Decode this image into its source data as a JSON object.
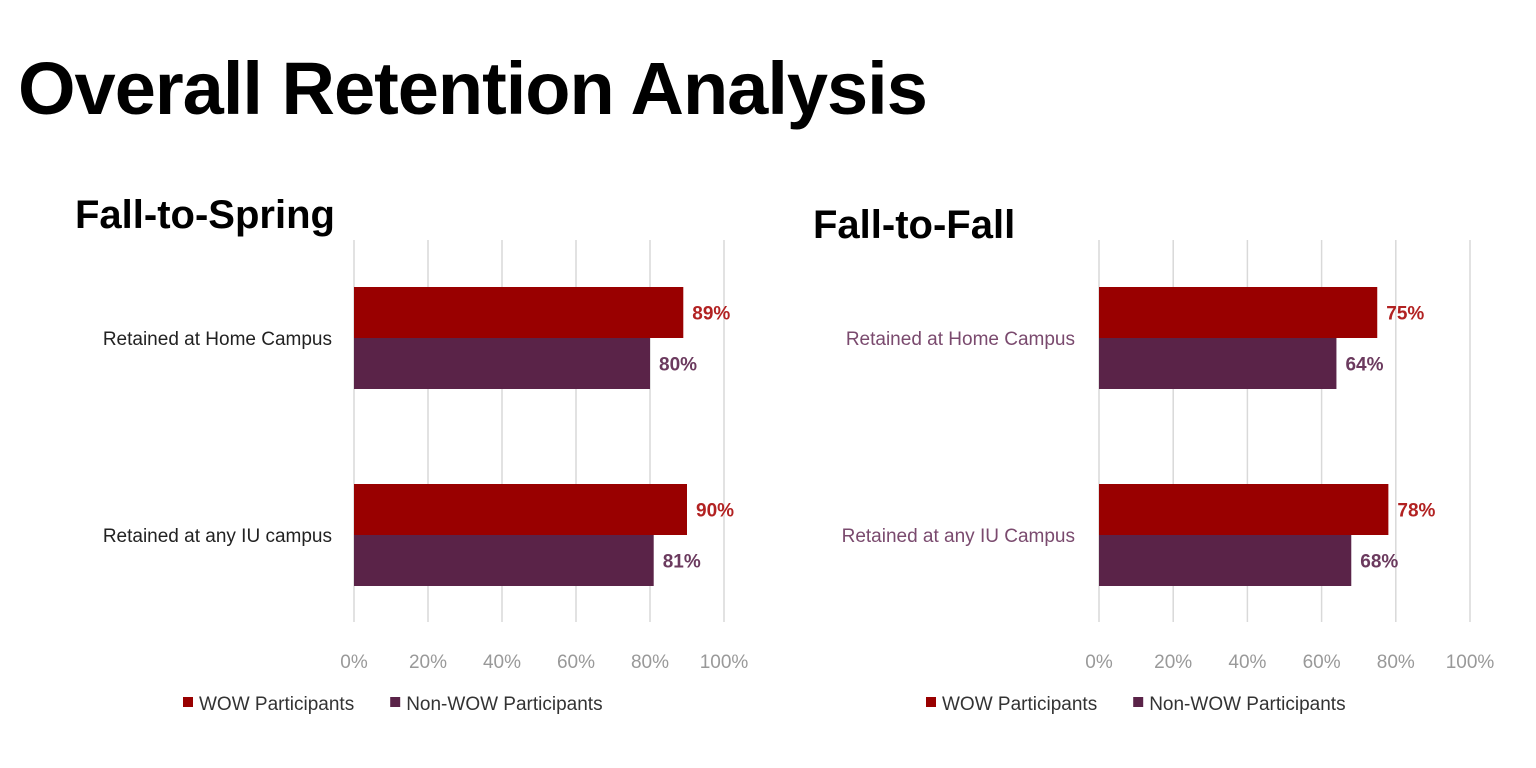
{
  "title": "Overall Retention Analysis",
  "colors": {
    "wow": "#990000",
    "non_wow": "#5a2348",
    "grid": "#d9d9d9"
  },
  "chart_data": [
    {
      "type": "bar",
      "orientation": "horizontal",
      "title": "Fall-to-Spring",
      "categories": [
        "Retained at Home Campus",
        "Retained at any IU campus"
      ],
      "series": [
        {
          "name": "WOW Participants",
          "values": [
            89,
            90
          ],
          "labels": [
            "89%",
            "90%"
          ]
        },
        {
          "name": "Non-WOW Participants",
          "values": [
            80,
            81
          ],
          "labels": [
            "80%",
            "81%"
          ]
        }
      ],
      "xlim": [
        0,
        100
      ],
      "xticks": [
        "0%",
        "20%",
        "40%",
        "60%",
        "80%",
        "100%"
      ],
      "grid": true,
      "legend": "bottom",
      "category_label_color": "#222222"
    },
    {
      "type": "bar",
      "orientation": "horizontal",
      "title": "Fall-to-Fall",
      "categories": [
        "Retained at Home Campus",
        "Retained at any IU Campus"
      ],
      "series": [
        {
          "name": "WOW Participants",
          "values": [
            75,
            78
          ],
          "labels": [
            "75%",
            "78%"
          ]
        },
        {
          "name": "Non-WOW Participants",
          "values": [
            64,
            68
          ],
          "labels": [
            "64%",
            "68%"
          ]
        }
      ],
      "xlim": [
        0,
        100
      ],
      "xticks": [
        "0%",
        "20%",
        "40%",
        "60%",
        "80%",
        "100%"
      ],
      "grid": true,
      "legend": "bottom",
      "category_label_color": "#7a4a6e"
    }
  ]
}
